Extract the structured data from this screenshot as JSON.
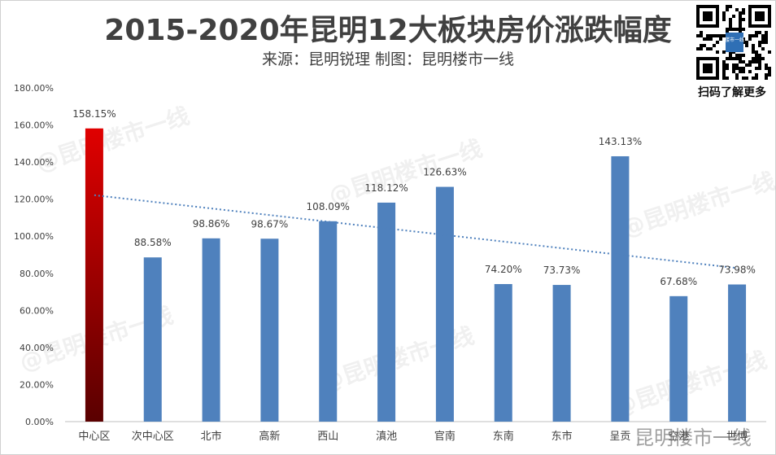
{
  "title": "2015-2020年昆明12大板块房价涨跌幅度",
  "subtitle": "来源：昆明锐理 制图：昆明楼市一线",
  "qr_caption": "扫码了解更多",
  "qr_center_text": "楼市一线",
  "watermark_text": "@昆明楼市一线",
  "corner_watermark": "昆明楼市一线",
  "colors": {
    "bar": "#4f81bd",
    "highlight_top": "#e00000",
    "highlight_bottom": "#5a0000",
    "trendline": "#4f81bd",
    "grid": "#d9d9d9",
    "text": "#404040"
  },
  "chart_data": {
    "type": "bar",
    "categories": [
      "中心区",
      "次中心区",
      "北市",
      "高新",
      "西山",
      "滇池",
      "官南",
      "东南",
      "东市",
      "呈贡",
      "空港",
      "世博"
    ],
    "values": [
      158.15,
      88.58,
      98.86,
      98.67,
      108.09,
      118.12,
      126.63,
      74.2,
      73.73,
      143.13,
      67.68,
      73.98
    ],
    "value_labels": [
      "158.15%",
      "88.58%",
      "98.86%",
      "98.67%",
      "108.09%",
      "118.12%",
      "126.63%",
      "74.20%",
      "73.73%",
      "143.13%",
      "67.68%",
      "73.98%"
    ],
    "highlight_index": 0,
    "ylim": [
      0,
      180
    ],
    "yticks": [
      "0.00%",
      "20.00%",
      "40.00%",
      "60.00%",
      "80.00%",
      "100.00%",
      "120.00%",
      "140.00%",
      "160.00%",
      "180.00%"
    ],
    "trendline": "linear",
    "grid": false,
    "legend": "none"
  }
}
